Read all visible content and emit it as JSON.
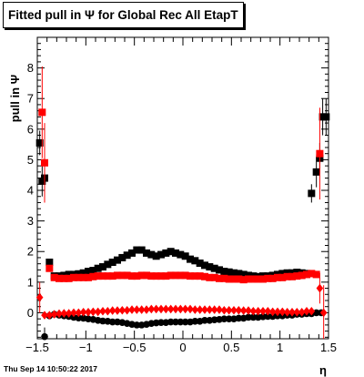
{
  "title": "Fitted pull in  Ψ  for Global Rec All EtapT",
  "timestamp": "Thu Sep 14 10:50:22 2017",
  "chart_data": {
    "type": "scatter",
    "xlabel": "η",
    "ylabel": "pull in  Ψ",
    "xlim": [
      -1.5,
      1.5
    ],
    "ylim": [
      -0.85,
      9.0
    ],
    "x_ticks": [
      -1.5,
      -1,
      -0.5,
      0,
      0.5,
      1,
      1.5
    ],
    "x_tick_labels": [
      "−1.5",
      "−1",
      "−0.5",
      "0",
      "0.5",
      "1",
      "1.5"
    ],
    "y_ticks": [
      0,
      1,
      2,
      3,
      4,
      5,
      6,
      7,
      8
    ],
    "y_tick_labels": [
      "0",
      "1",
      "2",
      "3",
      "4",
      "5",
      "6",
      "7",
      "8"
    ],
    "colors": {
      "black": "#000000",
      "red": "#ff0000"
    },
    "series": [
      {
        "role": "sigma",
        "color": "black",
        "marker": "square",
        "x": [
          -1.475,
          -1.45,
          -1.425,
          -1.375,
          -1.325,
          -1.275,
          -1.225,
          -1.175,
          -1.125,
          -1.075,
          -1.025,
          -0.975,
          -0.925,
          -0.875,
          -0.825,
          -0.775,
          -0.725,
          -0.675,
          -0.625,
          -0.575,
          -0.525,
          -0.475,
          -0.425,
          -0.375,
          -0.325,
          -0.275,
          -0.225,
          -0.175,
          -0.125,
          -0.075,
          -0.025,
          0.025,
          0.075,
          0.125,
          0.175,
          0.225,
          0.275,
          0.325,
          0.375,
          0.425,
          0.475,
          0.525,
          0.575,
          0.625,
          0.675,
          0.725,
          0.775,
          0.825,
          0.875,
          0.925,
          0.975,
          1.025,
          1.075,
          1.125,
          1.175,
          1.225,
          1.275,
          1.325,
          1.375,
          1.41,
          1.44,
          1.475
        ],
        "y": [
          5.55,
          4.3,
          4.4,
          1.65,
          1.2,
          1.2,
          1.22,
          1.25,
          1.25,
          1.27,
          1.3,
          1.35,
          1.38,
          1.45,
          1.5,
          1.58,
          1.65,
          1.72,
          1.8,
          1.88,
          1.95,
          2.05,
          2.05,
          1.95,
          1.9,
          1.85,
          1.9,
          1.95,
          2.0,
          1.95,
          1.9,
          1.85,
          1.75,
          1.7,
          1.62,
          1.55,
          1.5,
          1.45,
          1.4,
          1.35,
          1.33,
          1.3,
          1.28,
          1.25,
          1.22,
          1.2,
          1.18,
          1.2,
          1.2,
          1.22,
          1.25,
          1.28,
          1.3,
          1.3,
          1.32,
          1.3,
          1.28,
          3.9,
          4.6,
          5.05,
          6.4,
          6.4
        ],
        "yerr": [
          0.4,
          0.5,
          0.4,
          0.1,
          0.05,
          0.05,
          0.05,
          0.05,
          0.05,
          0.05,
          0.05,
          0.05,
          0.05,
          0.05,
          0.05,
          0.05,
          0.05,
          0.05,
          0.05,
          0.05,
          0.05,
          0.05,
          0.05,
          0.05,
          0.05,
          0.05,
          0.05,
          0.05,
          0.05,
          0.05,
          0.05,
          0.05,
          0.05,
          0.05,
          0.05,
          0.05,
          0.05,
          0.05,
          0.05,
          0.05,
          0.05,
          0.05,
          0.05,
          0.05,
          0.05,
          0.05,
          0.05,
          0.05,
          0.05,
          0.05,
          0.05,
          0.05,
          0.05,
          0.05,
          0.05,
          0.05,
          0.05,
          0.3,
          0.5,
          0.5,
          0.6,
          0.6
        ]
      },
      {
        "role": "sigma",
        "color": "red",
        "marker": "square",
        "x": [
          -1.45,
          -1.425,
          -1.375,
          -1.325,
          -1.275,
          -1.225,
          -1.175,
          -1.125,
          -1.075,
          -1.025,
          -0.975,
          -0.925,
          -0.875,
          -0.825,
          -0.775,
          -0.725,
          -0.675,
          -0.625,
          -0.575,
          -0.525,
          -0.475,
          -0.425,
          -0.375,
          -0.325,
          -0.275,
          -0.225,
          -0.175,
          -0.125,
          -0.075,
          -0.025,
          0.025,
          0.075,
          0.125,
          0.175,
          0.225,
          0.275,
          0.325,
          0.375,
          0.425,
          0.475,
          0.525,
          0.575,
          0.625,
          0.675,
          0.725,
          0.775,
          0.825,
          0.875,
          0.925,
          0.975,
          1.025,
          1.075,
          1.125,
          1.175,
          1.225,
          1.275,
          1.325,
          1.375,
          1.41
        ],
        "y": [
          6.55,
          4.9,
          1.45,
          1.15,
          1.12,
          1.12,
          1.12,
          1.15,
          1.15,
          1.15,
          1.15,
          1.18,
          1.2,
          1.2,
          1.2,
          1.2,
          1.22,
          1.22,
          1.22,
          1.2,
          1.2,
          1.22,
          1.22,
          1.2,
          1.2,
          1.2,
          1.2,
          1.22,
          1.22,
          1.22,
          1.22,
          1.2,
          1.2,
          1.2,
          1.18,
          1.15,
          1.15,
          1.12,
          1.12,
          1.1,
          1.1,
          1.1,
          1.08,
          1.1,
          1.1,
          1.1,
          1.1,
          1.12,
          1.12,
          1.15,
          1.15,
          1.18,
          1.18,
          1.2,
          1.22,
          1.25,
          1.28,
          1.25,
          5.2
        ],
        "yerr": [
          1.5,
          1.3,
          0.1,
          0.05,
          0.05,
          0.05,
          0.05,
          0.05,
          0.05,
          0.05,
          0.05,
          0.05,
          0.05,
          0.05,
          0.05,
          0.05,
          0.05,
          0.05,
          0.05,
          0.05,
          0.05,
          0.05,
          0.05,
          0.05,
          0.05,
          0.05,
          0.05,
          0.05,
          0.05,
          0.05,
          0.05,
          0.05,
          0.05,
          0.05,
          0.05,
          0.05,
          0.05,
          0.05,
          0.05,
          0.05,
          0.05,
          0.05,
          0.05,
          0.05,
          0.05,
          0.05,
          0.05,
          0.05,
          0.05,
          0.05,
          0.05,
          0.05,
          0.05,
          0.05,
          0.05,
          0.05,
          0.05,
          0.05,
          1.5
        ]
      },
      {
        "role": "mean",
        "color": "black",
        "marker": "circle",
        "x": [
          -1.425,
          -1.375,
          -1.325,
          -1.275,
          -1.225,
          -1.175,
          -1.125,
          -1.075,
          -1.025,
          -0.975,
          -0.925,
          -0.875,
          -0.825,
          -0.775,
          -0.725,
          -0.675,
          -0.625,
          -0.575,
          -0.525,
          -0.475,
          -0.425,
          -0.375,
          -0.325,
          -0.275,
          -0.225,
          -0.175,
          -0.125,
          -0.075,
          -0.025,
          0.025,
          0.075,
          0.125,
          0.175,
          0.225,
          0.275,
          0.325,
          0.375,
          0.425,
          0.475,
          0.525,
          0.575,
          0.625,
          0.675,
          0.725,
          0.775,
          0.825,
          0.875,
          0.925,
          0.975,
          1.025,
          1.075,
          1.125,
          1.175,
          1.225,
          1.275,
          1.325,
          1.375,
          1.425
        ],
        "y": [
          -0.78,
          -0.1,
          -0.05,
          -0.08,
          -0.1,
          -0.12,
          -0.15,
          -0.17,
          -0.18,
          -0.2,
          -0.22,
          -0.25,
          -0.27,
          -0.28,
          -0.3,
          -0.3,
          -0.32,
          -0.35,
          -0.38,
          -0.4,
          -0.4,
          -0.38,
          -0.35,
          -0.33,
          -0.32,
          -0.32,
          -0.3,
          -0.3,
          -0.3,
          -0.3,
          -0.3,
          -0.28,
          -0.28,
          -0.25,
          -0.25,
          -0.23,
          -0.22,
          -0.2,
          -0.2,
          -0.2,
          -0.18,
          -0.18,
          -0.15,
          -0.15,
          -0.15,
          -0.13,
          -0.12,
          -0.12,
          -0.1,
          -0.1,
          -0.08,
          -0.08,
          -0.05,
          -0.05,
          -0.03,
          -0.03,
          0.0,
          0.0
        ],
        "yerr": [
          0.3,
          0.05,
          0.05,
          0.05,
          0.05,
          0.05,
          0.05,
          0.05,
          0.05,
          0.05,
          0.05,
          0.05,
          0.05,
          0.05,
          0.05,
          0.05,
          0.05,
          0.05,
          0.05,
          0.05,
          0.05,
          0.05,
          0.05,
          0.05,
          0.05,
          0.05,
          0.05,
          0.05,
          0.05,
          0.05,
          0.05,
          0.05,
          0.05,
          0.05,
          0.05,
          0.05,
          0.05,
          0.05,
          0.05,
          0.05,
          0.05,
          0.05,
          0.05,
          0.05,
          0.05,
          0.05,
          0.05,
          0.05,
          0.05,
          0.05,
          0.05,
          0.05,
          0.05,
          0.05,
          0.05,
          0.05,
          0.05,
          0.05
        ]
      },
      {
        "role": "mean",
        "color": "red",
        "marker": "diamond",
        "x": [
          -1.475,
          -1.425,
          -1.375,
          -1.325,
          -1.275,
          -1.225,
          -1.175,
          -1.125,
          -1.075,
          -1.025,
          -0.975,
          -0.925,
          -0.875,
          -0.825,
          -0.775,
          -0.725,
          -0.675,
          -0.625,
          -0.575,
          -0.525,
          -0.475,
          -0.425,
          -0.375,
          -0.325,
          -0.275,
          -0.225,
          -0.175,
          -0.125,
          -0.075,
          -0.025,
          0.025,
          0.075,
          0.125,
          0.175,
          0.225,
          0.275,
          0.325,
          0.375,
          0.425,
          0.475,
          0.525,
          0.575,
          0.625,
          0.675,
          0.725,
          0.775,
          0.825,
          0.875,
          0.925,
          0.975,
          1.025,
          1.075,
          1.125,
          1.175,
          1.225,
          1.275,
          1.325,
          1.41,
          1.45
        ],
        "y": [
          0.5,
          -0.08,
          -0.08,
          -0.05,
          -0.03,
          -0.02,
          -0.02,
          0.0,
          0.0,
          0.02,
          0.02,
          0.03,
          0.03,
          0.05,
          0.05,
          0.07,
          0.07,
          0.08,
          0.08,
          0.1,
          0.1,
          0.1,
          0.1,
          0.12,
          0.12,
          0.12,
          0.12,
          0.12,
          0.12,
          0.12,
          0.12,
          0.12,
          0.1,
          0.1,
          0.1,
          0.1,
          0.1,
          0.1,
          0.08,
          0.08,
          0.08,
          0.08,
          0.07,
          0.07,
          0.05,
          0.05,
          0.05,
          0.05,
          0.03,
          0.03,
          0.03,
          0.02,
          0.02,
          0.02,
          0.02,
          0.05,
          0.05,
          0.8,
          0.0
        ],
        "yerr": [
          0.5,
          0.05,
          0.05,
          0.05,
          0.05,
          0.05,
          0.05,
          0.05,
          0.05,
          0.05,
          0.05,
          0.05,
          0.05,
          0.05,
          0.05,
          0.05,
          0.05,
          0.05,
          0.05,
          0.05,
          0.05,
          0.05,
          0.05,
          0.05,
          0.05,
          0.05,
          0.05,
          0.05,
          0.05,
          0.05,
          0.05,
          0.05,
          0.05,
          0.05,
          0.05,
          0.05,
          0.05,
          0.05,
          0.05,
          0.05,
          0.05,
          0.05,
          0.05,
          0.05,
          0.05,
          0.05,
          0.05,
          0.05,
          0.05,
          0.05,
          0.05,
          0.05,
          0.05,
          0.05,
          0.05,
          0.05,
          0.05,
          0.5,
          0.9
        ]
      }
    ]
  }
}
